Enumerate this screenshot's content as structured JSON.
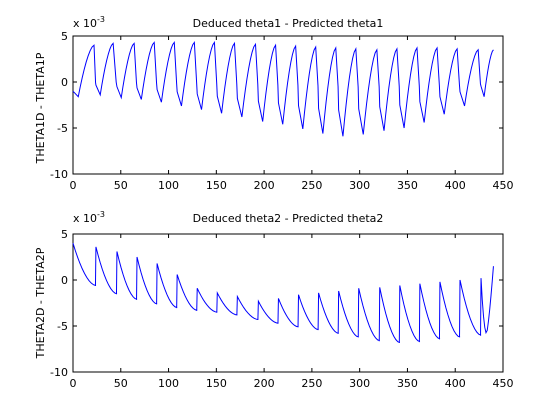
{
  "chart_data": [
    {
      "type": "line",
      "title": "Deduced theta1 - Predicted theta1",
      "xlabel": "",
      "ylabel": "THETA1D - THETA1P",
      "y_multiplier": {
        "base": "x 10",
        "exponent": "-3"
      },
      "xlim": [
        0,
        450
      ],
      "ylim": [
        -10,
        5
      ],
      "xticks": [
        "0",
        "50",
        "100",
        "150",
        "200",
        "250",
        "300",
        "350",
        "400",
        "450"
      ],
      "yticks": [
        "-10",
        "-5",
        "0",
        "5"
      ],
      "grid": false,
      "line_color": "#0000ff",
      "series": [
        {
          "pattern": "periodic sawtooth, period ~21.2 samples",
          "x_end": 440,
          "cycles": [
            {
              "start": 0,
              "peak_x": 22,
              "peak": 4.0,
              "min": -1.6
            },
            {
              "start": 24,
              "peak_x": 42,
              "peak": 4.2,
              "min": -1.4
            },
            {
              "start": 46,
              "peak_x": 64,
              "peak": 4.2,
              "min": -1.7
            },
            {
              "start": 67,
              "peak_x": 85,
              "peak": 4.3,
              "min": -1.9
            },
            {
              "start": 88,
              "peak_x": 106,
              "peak": 4.3,
              "min": -2.2
            },
            {
              "start": 109,
              "peak_x": 127,
              "peak": 4.3,
              "min": -2.6
            },
            {
              "start": 130,
              "peak_x": 148,
              "peak": 4.3,
              "min": -3.0
            },
            {
              "start": 151,
              "peak_x": 169,
              "peak": 4.2,
              "min": -3.4
            },
            {
              "start": 172,
              "peak_x": 191,
              "peak": 4.1,
              "min": -3.8
            },
            {
              "start": 194,
              "peak_x": 212,
              "peak": 4.0,
              "min": -4.3
            },
            {
              "start": 215,
              "peak_x": 233,
              "peak": 3.9,
              "min": -4.6
            },
            {
              "start": 236,
              "peak_x": 254,
              "peak": 3.8,
              "min": -5.1
            },
            {
              "start": 257,
              "peak_x": 275,
              "peak": 3.7,
              "min": -5.6
            },
            {
              "start": 278,
              "peak_x": 296,
              "peak": 3.6,
              "min": -5.9
            },
            {
              "start": 299,
              "peak_x": 318,
              "peak": 3.5,
              "min": -5.7
            },
            {
              "start": 321,
              "peak_x": 339,
              "peak": 3.6,
              "min": -5.3
            },
            {
              "start": 342,
              "peak_x": 360,
              "peak": 3.7,
              "min": -5.0
            },
            {
              "start": 363,
              "peak_x": 381,
              "peak": 3.7,
              "min": -4.4
            },
            {
              "start": 384,
              "peak_x": 402,
              "peak": 3.6,
              "min": -3.5
            },
            {
              "start": 405,
              "peak_x": 424,
              "peak": 3.5,
              "min": -2.6
            },
            {
              "start": 427,
              "peak_x": 440,
              "peak": 3.5,
              "min": -1.6
            }
          ]
        }
      ]
    },
    {
      "type": "line",
      "title": "Deduced theta2 - Predicted theta2",
      "xlabel": "",
      "ylabel": "THETA2D - THETA2P",
      "y_multiplier": {
        "base": "x 10",
        "exponent": "-3"
      },
      "xlim": [
        0,
        450
      ],
      "ylim": [
        -10,
        5
      ],
      "xticks": [
        "0",
        "50",
        "100",
        "150",
        "200",
        "250",
        "300",
        "350",
        "400",
        "450"
      ],
      "yticks": [
        "-10",
        "-5",
        "0",
        "5"
      ],
      "grid": false,
      "line_color": "#0000ff",
      "series": [
        {
          "pattern": "periodic sawtooth, period ~21.2 samples",
          "x_end": 440,
          "cycles": [
            {
              "start": 0,
              "peak_x": 0,
              "peak": 4.0,
              "min": -0.6
            },
            {
              "start": 24,
              "peak_x": 24,
              "peak": 3.6,
              "min": -1.5
            },
            {
              "start": 46,
              "peak_x": 46,
              "peak": 3.1,
              "min": -2.1
            },
            {
              "start": 67,
              "peak_x": 67,
              "peak": 2.5,
              "min": -2.6
            },
            {
              "start": 88,
              "peak_x": 88,
              "peak": 1.8,
              "min": -3.0
            },
            {
              "start": 109,
              "peak_x": 109,
              "peak": 0.6,
              "min": -3.3
            },
            {
              "start": 130,
              "peak_x": 130,
              "peak": -0.9,
              "min": -3.5
            },
            {
              "start": 151,
              "peak_x": 151,
              "peak": -1.4,
              "min": -3.8
            },
            {
              "start": 172,
              "peak_x": 172,
              "peak": -1.8,
              "min": -4.3
            },
            {
              "start": 194,
              "peak_x": 194,
              "peak": -2.3,
              "min": -4.7
            },
            {
              "start": 215,
              "peak_x": 215,
              "peak": -2.0,
              "min": -5.1
            },
            {
              "start": 236,
              "peak_x": 236,
              "peak": -1.6,
              "min": -5.4
            },
            {
              "start": 257,
              "peak_x": 257,
              "peak": -1.4,
              "min": -5.8
            },
            {
              "start": 278,
              "peak_x": 278,
              "peak": -1.2,
              "min": -6.2
            },
            {
              "start": 299,
              "peak_x": 299,
              "peak": -0.9,
              "min": -6.6
            },
            {
              "start": 321,
              "peak_x": 321,
              "peak": -0.8,
              "min": -6.8
            },
            {
              "start": 342,
              "peak_x": 342,
              "peak": -0.6,
              "min": -6.7
            },
            {
              "start": 363,
              "peak_x": 363,
              "peak": -0.4,
              "min": -6.4
            },
            {
              "start": 384,
              "peak_x": 384,
              "peak": -0.2,
              "min": -6.2
            },
            {
              "start": 405,
              "peak_x": 405,
              "peak": 0.0,
              "min": -6.0
            },
            {
              "start": 427,
              "peak_x": 427,
              "peak": 0.2,
              "min": -5.8
            }
          ],
          "end_value": 1.5
        }
      ]
    }
  ]
}
